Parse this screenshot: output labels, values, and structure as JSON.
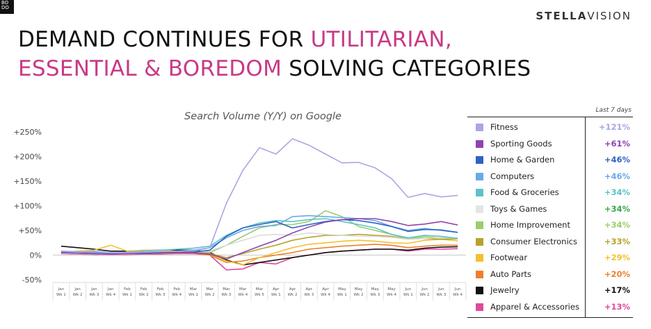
{
  "logo": {
    "text": "BO DO"
  },
  "brand": {
    "part1": "STELLA",
    "part2": "VISION"
  },
  "headline": {
    "line1_a": "DEMAND CONTINUES FOR ",
    "line1_b": "UTILITARIAN,",
    "line2_a": "ESSENTIAL & BOREDOM",
    "line2_b": " SOLVING CATEGORIES"
  },
  "colors": {
    "highlight": "#c83a86"
  },
  "legend": {
    "header": "Last 7 days"
  },
  "chart_data": {
    "type": "line",
    "title": "Search Volume (Y/Y) on Google",
    "ylim": [
      -50,
      250
    ],
    "yticks": [
      -50,
      0,
      50,
      100,
      150,
      200,
      250
    ],
    "ytick_labels": [
      "-50%",
      "0%",
      "+50%",
      "+100%",
      "+150%",
      "+200%",
      "+250%"
    ],
    "grid": false,
    "legend_position": "right",
    "x": [
      [
        "Jan",
        "Wk 1"
      ],
      [
        "Jan",
        "Wk 2"
      ],
      [
        "Jan",
        "Wk 3"
      ],
      [
        "Jan",
        "Wk 4"
      ],
      [
        "Feb",
        "Wk 1"
      ],
      [
        "Feb",
        "Wk 2"
      ],
      [
        "Feb",
        "Wk 3"
      ],
      [
        "Feb",
        "Wk 4"
      ],
      [
        "Mar",
        "Wk 1"
      ],
      [
        "Mar",
        "Wk 2"
      ],
      [
        "Mar",
        "Wk 3"
      ],
      [
        "Mar",
        "Wk 4"
      ],
      [
        "Mar",
        "Wk 5"
      ],
      [
        "Apr",
        "Wk 1"
      ],
      [
        "Apr",
        "Wk 2"
      ],
      [
        "Apr",
        "Wk 3"
      ],
      [
        "Apr",
        "Wk 4"
      ],
      [
        "May",
        "Wk 1"
      ],
      [
        "May",
        "Wk 2"
      ],
      [
        "May",
        "Wk 3"
      ],
      [
        "May",
        "Wk 4"
      ],
      [
        "Jun",
        "Wk 1"
      ],
      [
        "Jun",
        "Wk 2"
      ],
      [
        "Jun",
        "Wk 3"
      ],
      [
        "Jun",
        "Wk 4"
      ]
    ],
    "series": [
      {
        "name": "Fitness",
        "color": "#a9a6e6",
        "last7": "+121%",
        "values": [
          8,
          6,
          8,
          5,
          5,
          6,
          7,
          8,
          10,
          15,
          105,
          172,
          218,
          205,
          236,
          223,
          205,
          187,
          188,
          177,
          155,
          117,
          125,
          118,
          121
        ]
      },
      {
        "name": "Sporting Goods",
        "color": "#8e44ad",
        "last7": "+61%",
        "values": [
          5,
          4,
          3,
          2,
          3,
          3,
          4,
          5,
          5,
          2,
          -8,
          5,
          18,
          30,
          45,
          57,
          67,
          72,
          74,
          74,
          68,
          60,
          63,
          68,
          61
        ]
      },
      {
        "name": "Home & Garden",
        "color": "#2e63c4",
        "last7": "+46%",
        "values": [
          5,
          4,
          3,
          2,
          3,
          4,
          5,
          5,
          6,
          10,
          38,
          55,
          62,
          68,
          55,
          62,
          68,
          72,
          70,
          65,
          58,
          48,
          52,
          51,
          46
        ]
      },
      {
        "name": "Computers",
        "color": "#6aa9e8",
        "last7": "+46%",
        "values": [
          6,
          5,
          4,
          3,
          4,
          5,
          6,
          7,
          8,
          15,
          35,
          50,
          58,
          60,
          78,
          80,
          78,
          76,
          74,
          70,
          58,
          50,
          54,
          50,
          46
        ]
      },
      {
        "name": "Food & Groceries",
        "color": "#5bc3c8",
        "last7": "+34%",
        "values": [
          8,
          7,
          6,
          5,
          6,
          8,
          10,
          12,
          14,
          18,
          40,
          55,
          65,
          70,
          68,
          72,
          74,
          68,
          62,
          55,
          42,
          35,
          40,
          38,
          34
        ]
      },
      {
        "name": "Toys & Games",
        "color": "#e4e4e4",
        "last7": "+34%",
        "values": [
          4,
          3,
          2,
          1,
          2,
          3,
          4,
          5,
          6,
          8,
          20,
          30,
          40,
          42,
          40,
          45,
          42,
          40,
          38,
          38,
          36,
          32,
          34,
          36,
          34
        ]
      },
      {
        "name": "Home Improvement",
        "color": "#9acd6b",
        "last7": "+34%",
        "values": [
          6,
          5,
          4,
          3,
          4,
          5,
          6,
          7,
          8,
          5,
          20,
          38,
          55,
          62,
          62,
          68,
          90,
          78,
          58,
          50,
          42,
          33,
          37,
          35,
          34
        ]
      },
      {
        "name": "Consumer Electronics",
        "color": "#b8a22a",
        "last7": "+33%",
        "values": [
          5,
          5,
          4,
          3,
          4,
          5,
          5,
          6,
          6,
          3,
          -5,
          3,
          12,
          20,
          30,
          36,
          40,
          40,
          42,
          40,
          38,
          32,
          34,
          32,
          33
        ]
      },
      {
        "name": "Footwear",
        "color": "#f2c12e",
        "last7": "+29%",
        "values": [
          5,
          8,
          10,
          20,
          8,
          10,
          10,
          8,
          6,
          2,
          -12,
          -20,
          -5,
          5,
          15,
          22,
          25,
          28,
          30,
          28,
          25,
          24,
          30,
          32,
          29
        ]
      },
      {
        "name": "Auto Parts",
        "color": "#ef7f2a",
        "last7": "+20%",
        "values": [
          4,
          3,
          2,
          1,
          2,
          3,
          3,
          4,
          4,
          0,
          -15,
          -12,
          -5,
          0,
          5,
          12,
          15,
          18,
          20,
          22,
          20,
          15,
          18,
          20,
          20
        ]
      },
      {
        "name": "Jewelry",
        "color": "#111111",
        "last7": "+17%",
        "values": [
          18,
          15,
          12,
          8,
          8,
          9,
          10,
          10,
          10,
          5,
          -10,
          -20,
          -15,
          -10,
          -5,
          0,
          5,
          8,
          10,
          12,
          12,
          10,
          14,
          16,
          17
        ]
      },
      {
        "name": "Apparel & Accessories",
        "color": "#e0499b",
        "last7": "+13%",
        "values": [
          3,
          2,
          1,
          0,
          1,
          2,
          2,
          3,
          3,
          0,
          -30,
          -28,
          -15,
          -18,
          -5,
          0,
          5,
          8,
          10,
          12,
          12,
          8,
          12,
          12,
          13
        ]
      }
    ]
  }
}
